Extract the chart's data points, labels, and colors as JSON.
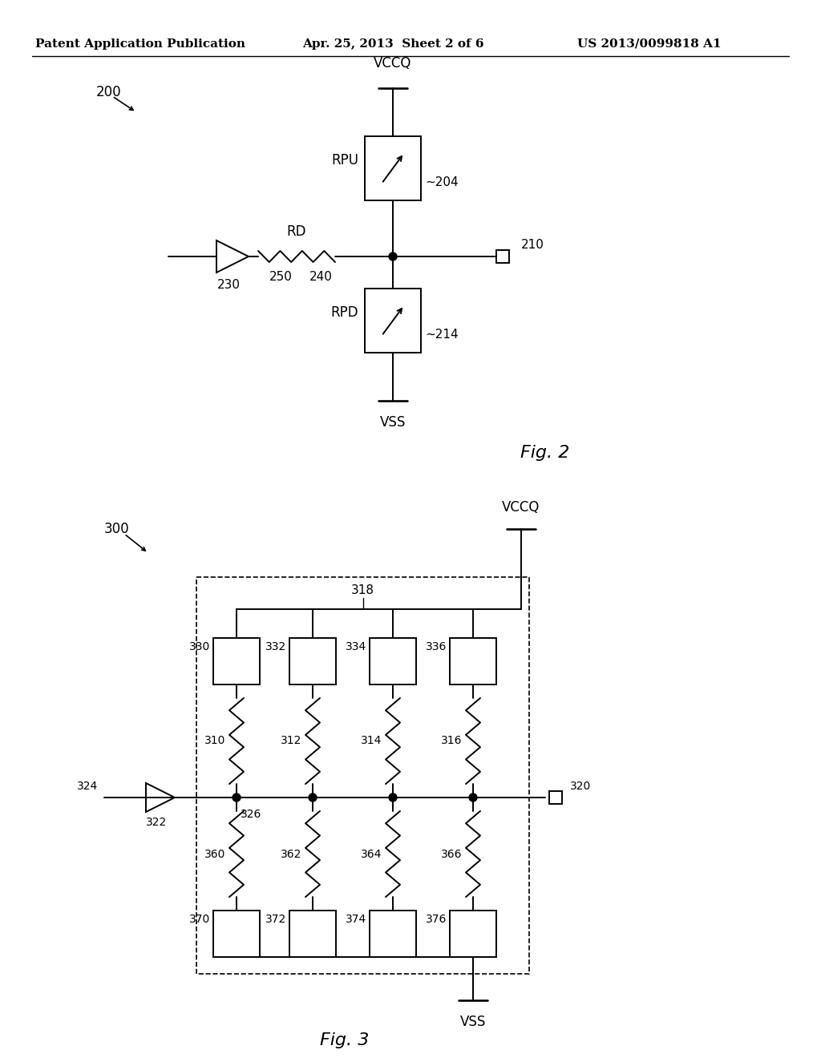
{
  "background_color": "#ffffff",
  "header_text": "Patent Application Publication",
  "header_date": "Apr. 25, 2013  Sheet 2 of 6",
  "header_patent": "US 2013/0099818 A1",
  "lw": 1.4
}
